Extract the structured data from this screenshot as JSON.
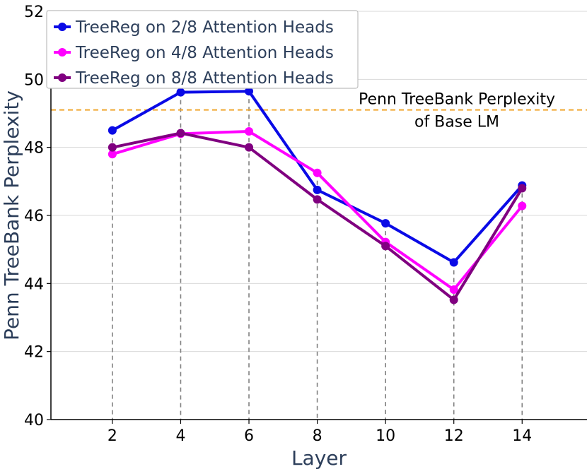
{
  "chart_data": {
    "type": "line",
    "xlabel": "Layer",
    "ylabel": "Penn TreeBank Perplexity",
    "x": [
      2,
      4,
      6,
      8,
      10,
      12,
      14
    ],
    "xticks": [
      "2",
      "4",
      "6",
      "8",
      "10",
      "12",
      "14"
    ],
    "yticks": [
      "40",
      "42",
      "44",
      "46",
      "48",
      "50",
      "52"
    ],
    "xlim": [
      0.2,
      15.9
    ],
    "ylim": [
      40,
      52
    ],
    "grid": "horizontal",
    "legend_position": "top-left",
    "series": [
      {
        "name": "TreeReg on 2/8 Attention Heads",
        "color": "#0a0ae6",
        "values": [
          48.5,
          49.62,
          49.65,
          46.75,
          45.77,
          44.62,
          46.88
        ]
      },
      {
        "name": "TreeReg on 4/8 Attention Heads",
        "color": "#ff00ff",
        "values": [
          47.8,
          48.4,
          48.47,
          47.25,
          45.22,
          43.82,
          46.28
        ]
      },
      {
        "name": "TreeReg on 8/8 Attention Heads",
        "color": "#800080",
        "values": [
          48.0,
          48.42,
          48.0,
          46.47,
          45.1,
          43.52,
          46.8
        ]
      }
    ],
    "reference_line": {
      "value": 49.1,
      "color": "#f0a830",
      "label_line1": "Penn TreeBank Perplexity",
      "label_line2": "of Base LM"
    },
    "drop_line_color": "#808080"
  }
}
